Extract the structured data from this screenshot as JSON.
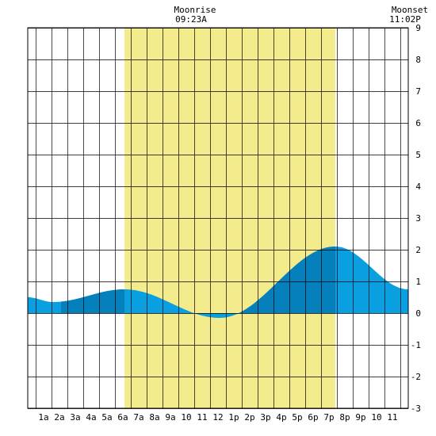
{
  "moon": {
    "rise_label": "Moonrise",
    "rise_time": "09:23A",
    "set_label": "Moonset",
    "set_time": "11:02P"
  },
  "chart_data": {
    "type": "area",
    "title": "",
    "xlabel": "",
    "ylabel": "",
    "x_range_hours": [
      -0.5,
      23.5
    ],
    "ylim": [
      -3,
      9
    ],
    "yticks": [
      -3,
      -2,
      -1,
      0,
      1,
      2,
      3,
      4,
      5,
      6,
      7,
      8,
      9
    ],
    "xtick_labels": [
      "1a",
      "2a",
      "3a",
      "4a",
      "5a",
      "6a",
      "7a",
      "8a",
      "9a",
      "10",
      "11",
      "12",
      "1p",
      "2p",
      "3p",
      "4p",
      "5p",
      "6p",
      "7p",
      "8p",
      "9p",
      "10",
      "11"
    ],
    "daylight_hours": [
      5.6,
      18.9
    ],
    "grid": true,
    "colors": {
      "daylight": "#f3eb8c",
      "water": "#0a9fe0",
      "water_dark": "#0580bd",
      "grid": "#000000"
    },
    "tides": [
      {
        "hour": -0.5,
        "height": 0.5
      },
      {
        "hour": 1.1,
        "height": 0.35
      },
      {
        "hour": 5.6,
        "height": 0.75
      },
      {
        "hour": 11.6,
        "height": -0.15
      },
      {
        "hour": 18.9,
        "height": 2.1
      },
      {
        "hour": 23.5,
        "height": 0.75
      }
    ],
    "dark_bands": [
      [
        1.6,
        5.6
      ],
      [
        12.7,
        18.9
      ]
    ]
  }
}
